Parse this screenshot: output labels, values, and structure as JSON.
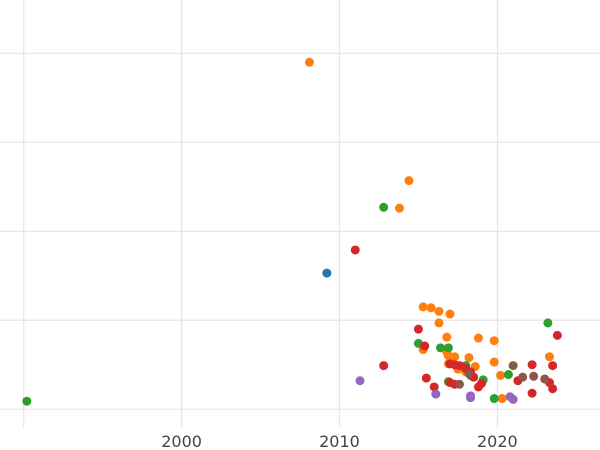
{
  "chart_data": {
    "type": "scatter",
    "title": "",
    "xlabel": "",
    "ylabel": "",
    "xlim": [
      1988.5,
      2026.5
    ],
    "ylim": [
      -0.2,
      4.6
    ],
    "grid": true,
    "x_ticks": [
      1990,
      2000,
      2010,
      2020,
      2030
    ],
    "x_tick_labels": [
      "",
      "2000",
      "2010",
      "2020",
      ""
    ],
    "y_ticks": [
      0,
      1,
      2,
      3,
      4
    ],
    "colors": {
      "blue": "#1f77b4",
      "orange": "#ff7f0e",
      "green": "#2ca02c",
      "red": "#d62728",
      "purple": "#9467bd",
      "brown": "#8c564b"
    },
    "series": [
      {
        "color": "#1f77b4",
        "points": [
          [
            2009.2,
            1.53
          ]
        ]
      },
      {
        "color": "#ff7f0e",
        "points": [
          [
            2008.1,
            3.9
          ],
          [
            2014.4,
            2.57
          ],
          [
            2013.8,
            2.26
          ],
          [
            2015.3,
            1.15
          ],
          [
            2015.8,
            1.14
          ],
          [
            2016.3,
            1.1
          ],
          [
            2017.0,
            1.07
          ],
          [
            2016.3,
            0.97
          ],
          [
            2016.8,
            0.81
          ],
          [
            2018.8,
            0.8
          ],
          [
            2019.8,
            0.77
          ],
          [
            2015.3,
            0.67
          ],
          [
            2016.9,
            0.6
          ],
          [
            2017.3,
            0.59
          ],
          [
            2018.2,
            0.58
          ],
          [
            2016.9,
            0.51
          ],
          [
            2018.6,
            0.48
          ],
          [
            2019.8,
            0.53
          ],
          [
            2020.2,
            0.38
          ],
          [
            2023.3,
            0.59
          ],
          [
            2017.5,
            0.45
          ],
          [
            2018.0,
            0.42
          ],
          [
            2020.3,
            0.12
          ],
          [
            2016.8,
            0.64
          ]
        ]
      },
      {
        "color": "#2ca02c",
        "points": [
          [
            1990.2,
            0.09
          ],
          [
            2012.8,
            2.27
          ],
          [
            2015.0,
            0.74
          ],
          [
            2016.4,
            0.69
          ],
          [
            2016.9,
            0.69
          ],
          [
            2023.2,
            0.97
          ],
          [
            2018.0,
            0.49
          ],
          [
            2018.3,
            0.38
          ],
          [
            2019.1,
            0.33
          ],
          [
            2019.8,
            0.12
          ],
          [
            2020.7,
            0.39
          ],
          [
            2016.9,
            0.31
          ]
        ]
      },
      {
        "color": "#d62728",
        "points": [
          [
            2011.0,
            1.79
          ],
          [
            2012.8,
            0.49
          ],
          [
            2015.0,
            0.9
          ],
          [
            2015.4,
            0.71
          ],
          [
            2015.5,
            0.35
          ],
          [
            2016.0,
            0.25
          ],
          [
            2017.0,
            0.51
          ],
          [
            2017.3,
            0.5
          ],
          [
            2017.0,
            0.3
          ],
          [
            2017.3,
            0.28
          ],
          [
            2018.0,
            0.46
          ],
          [
            2018.3,
            0.42
          ],
          [
            2018.5,
            0.36
          ],
          [
            2018.8,
            0.25
          ],
          [
            2019.0,
            0.29
          ],
          [
            2021.3,
            0.32
          ],
          [
            2022.2,
            0.5
          ],
          [
            2022.2,
            0.18
          ],
          [
            2023.5,
            0.49
          ],
          [
            2023.3,
            0.3
          ],
          [
            2023.5,
            0.23
          ],
          [
            2023.8,
            0.83
          ],
          [
            2017.6,
            0.49
          ]
        ]
      },
      {
        "color": "#9467bd",
        "points": [
          [
            2011.3,
            0.32
          ],
          [
            2016.1,
            0.17
          ],
          [
            2018.3,
            0.15
          ],
          [
            2018.3,
            0.13
          ],
          [
            2020.8,
            0.14
          ],
          [
            2021.0,
            0.11
          ]
        ]
      },
      {
        "color": "#8c564b",
        "points": [
          [
            2017.6,
            0.28
          ],
          [
            2018.2,
            0.4
          ],
          [
            2021.0,
            0.49
          ],
          [
            2021.6,
            0.36
          ],
          [
            2022.3,
            0.37
          ],
          [
            2023.0,
            0.34
          ]
        ]
      }
    ]
  }
}
